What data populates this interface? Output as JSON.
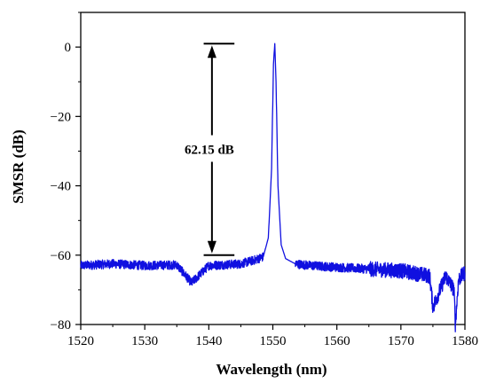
{
  "chart_data": {
    "type": "line",
    "title": "",
    "xlabel": "Wavelength (nm)",
    "ylabel": "SMSR (dB)",
    "xlim": [
      1520,
      1580
    ],
    "ylim": [
      -80,
      10
    ],
    "xticks": [
      1520,
      1530,
      1540,
      1550,
      1560,
      1570,
      1580
    ],
    "yticks": [
      0,
      -20,
      -40,
      -60,
      -80
    ],
    "xtick_labels": [
      "1520",
      "1530",
      "1540",
      "1550",
      "1560",
      "1570",
      "1580"
    ],
    "ytick_labels": [
      "0",
      "−20",
      "−40",
      "−60",
      "−80"
    ],
    "grid": false,
    "legend": "none",
    "series": [
      {
        "color": "#1010e0",
        "x": [
          1520,
          1525,
          1530,
          1535,
          1537.3,
          1540,
          1545,
          1547,
          1548.5,
          1549.3,
          1549.8,
          1550.1,
          1550.3,
          1550.5,
          1550.8,
          1551.3,
          1552,
          1553.5,
          1556,
          1560,
          1565,
          1570,
          1574.5,
          1575,
          1577,
          1578.3,
          1578.5,
          1579,
          1580
        ],
        "y": [
          -63,
          -62.5,
          -63,
          -62.8,
          -68,
          -63,
          -62.5,
          -61.5,
          -60.5,
          -55,
          -35,
          -5,
          1,
          -10,
          -40,
          -57,
          -61,
          -62.5,
          -63,
          -63.5,
          -64,
          -64.5,
          -66,
          -75,
          -66,
          -70,
          -80,
          -67,
          -65
        ]
      }
    ],
    "annotations": [
      {
        "text": "62.15 dB",
        "top_value": 1,
        "bottom_value": -60,
        "x_start": 1539.2,
        "x_end": 1544
      }
    ]
  }
}
